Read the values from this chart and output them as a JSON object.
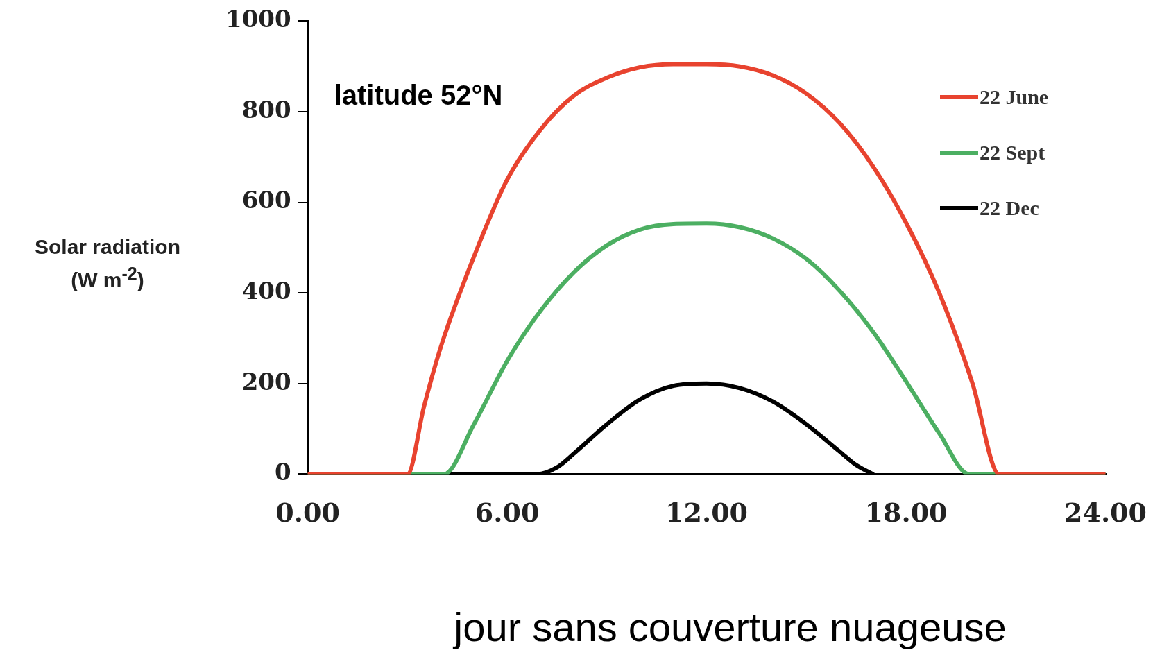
{
  "chart_data": {
    "type": "line",
    "ylabel": "Solar radiation (W m$^{-2}$)",
    "legend": "top right",
    "marker": "none",
    "line_style": "solid",
    "xlim": [
      0,
      24
    ],
    "xticks": [
      {
        "value": 0,
        "label": "0.00"
      },
      {
        "value": 6,
        "label": "6.00"
      },
      {
        "value": 12,
        "label": "12.00"
      },
      {
        "value": 18,
        "label": "18.00"
      },
      {
        "value": 24,
        "label": "24.00"
      }
    ],
    "ylim": [
      0,
      1000
    ],
    "yticks": [
      0,
      200,
      400,
      600,
      800,
      1000
    ],
    "annotations": [
      "latitude 52°N",
      "jour sans couverture nuageuse"
    ],
    "series": [
      {
        "name": "22 June",
        "color": "#e8432f",
        "x": [
          0,
          3,
          3.5,
          4,
          5,
          6,
          7,
          8,
          9,
          10,
          11,
          12,
          13,
          14,
          15,
          16,
          17,
          18,
          19,
          20,
          20.8,
          24
        ],
        "values": [
          0,
          0,
          150,
          280,
          480,
          650,
          760,
          835,
          875,
          898,
          905,
          905,
          900,
          880,
          840,
          775,
          680,
          555,
          400,
          200,
          0,
          0
        ]
      },
      {
        "name": "22 Sept",
        "color": "#4caf62",
        "x": [
          0,
          4.1,
          5,
          6,
          7,
          8,
          9,
          10,
          11,
          12,
          13,
          14,
          15,
          16,
          17,
          18,
          19,
          19.9,
          24
        ],
        "values": [
          0,
          0,
          110,
          250,
          360,
          445,
          505,
          540,
          552,
          553,
          545,
          520,
          475,
          405,
          315,
          205,
          90,
          0,
          0
        ]
      },
      {
        "name": "22 Dec",
        "color": "#000000",
        "x": [
          0,
          6.9,
          7.5,
          8,
          9,
          10,
          11,
          12,
          13,
          14,
          15,
          16,
          16.5,
          17
        ],
        "values": [
          0,
          0,
          15,
          45,
          110,
          165,
          195,
          200,
          190,
          160,
          110,
          50,
          20,
          0
        ]
      }
    ]
  }
}
